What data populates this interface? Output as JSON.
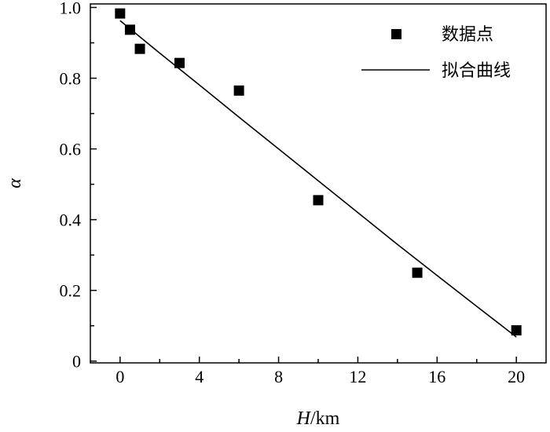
{
  "chart_data": {
    "type": "scatter",
    "xlabel": "H/km",
    "xlabel_italic": "H",
    "xlabel_unit": "/km",
    "ylabel": "α",
    "xlim": [
      -1.5,
      21.5
    ],
    "ylim": [
      -0.005,
      1.01
    ],
    "xticks": [
      0,
      4,
      8,
      12,
      16,
      20
    ],
    "xtick_labels": [
      "0",
      "4",
      "8",
      "12",
      "16",
      "20"
    ],
    "xminor_ticks": [
      2,
      6,
      10,
      14,
      18
    ],
    "yticks": [
      0,
      0.2,
      0.4,
      0.6,
      0.8,
      1.0
    ],
    "ytick_labels": [
      "0",
      "0.2",
      "0.4",
      "0.6",
      "0.8",
      "1.0"
    ],
    "yminor_ticks": [
      0.1,
      0.3,
      0.5,
      0.7,
      0.9
    ],
    "grid": false,
    "legend_position": "top-right",
    "series": [
      {
        "name": "数据点",
        "kind": "scatter",
        "marker": "square",
        "color": "#000000",
        "x": [
          0,
          0.5,
          1,
          3,
          6,
          10,
          15,
          20
        ],
        "y": [
          0.983,
          0.937,
          0.883,
          0.843,
          0.765,
          0.455,
          0.25,
          0.087
        ]
      },
      {
        "name": "拟合曲线",
        "kind": "line",
        "color": "#000000",
        "x": [
          0,
          2,
          4,
          6,
          8,
          10,
          12,
          14,
          16,
          18,
          20
        ],
        "y": [
          0.963,
          0.871,
          0.781,
          0.69,
          0.6,
          0.51,
          0.42,
          0.33,
          0.242,
          0.155,
          0.068
        ]
      }
    ]
  }
}
